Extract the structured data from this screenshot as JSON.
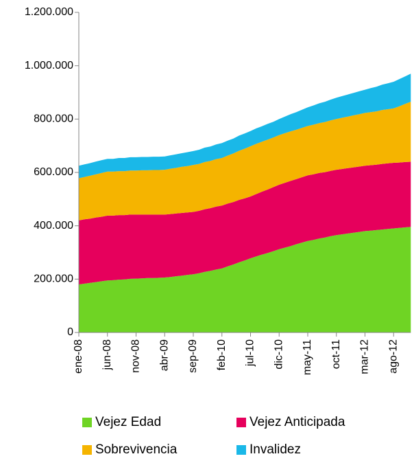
{
  "chart_data": {
    "type": "stacked_area",
    "categories": [
      "ene-08",
      null,
      null,
      null,
      null,
      "jun-08",
      null,
      null,
      null,
      null,
      "nov-08",
      null,
      null,
      null,
      null,
      "abr-09",
      null,
      null,
      null,
      null,
      "sep-09",
      null,
      null,
      null,
      null,
      "feb-10",
      null,
      null,
      null,
      null,
      "jul-10",
      null,
      null,
      null,
      null,
      "dic-10",
      null,
      null,
      null,
      null,
      "may-11",
      null,
      null,
      null,
      null,
      "oct-11",
      null,
      null,
      null,
      null,
      "mar-12",
      null,
      null,
      null,
      null,
      "ago-12",
      null,
      null,
      null
    ],
    "series": [
      {
        "name": "Vejez Edad",
        "color": "#6fd424",
        "values": [
          180000,
          183000,
          186000,
          189000,
          192000,
          195000,
          196000,
          198000,
          199000,
          201000,
          202000,
          203000,
          204000,
          204000,
          205000,
          206000,
          208000,
          211000,
          213000,
          216000,
          218000,
          222000,
          227000,
          231000,
          236000,
          240000,
          248000,
          255000,
          263000,
          270000,
          278000,
          285000,
          292000,
          298000,
          305000,
          312000,
          318000,
          324000,
          331000,
          337000,
          343000,
          347000,
          352000,
          356000,
          361000,
          365000,
          368000,
          371000,
          374000,
          377000,
          380000,
          382000,
          384000,
          386000,
          388000,
          390000,
          392000,
          394000,
          396000
        ]
      },
      {
        "name": "Vejez Anticipada",
        "color": "#e6005c",
        "values": [
          240000,
          241000,
          241000,
          242000,
          242000,
          243000,
          242000,
          242000,
          241000,
          241000,
          240000,
          239000,
          238000,
          238000,
          237000,
          236000,
          236000,
          235000,
          235000,
          234000,
          234000,
          234000,
          235000,
          235000,
          236000,
          236000,
          235000,
          234000,
          234000,
          233000,
          232000,
          234000,
          236000,
          238000,
          240000,
          242000,
          243000,
          244000,
          244000,
          245000,
          246000,
          246000,
          246000,
          245000,
          245000,
          245000,
          245000,
          245000,
          245000,
          245000,
          245000,
          245000,
          245000,
          246000,
          246000,
          246000,
          245000,
          245000,
          244000
        ]
      },
      {
        "name": "Sobrevivencia",
        "color": "#f5b400",
        "values": [
          158000,
          159000,
          161000,
          162000,
          164000,
          165000,
          165000,
          165000,
          165000,
          165000,
          165000,
          166000,
          166000,
          167000,
          167000,
          168000,
          170000,
          171000,
          173000,
          174000,
          176000,
          176000,
          177000,
          177000,
          178000,
          178000,
          180000,
          182000,
          184000,
          186000,
          188000,
          188000,
          187000,
          187000,
          186000,
          186000,
          186000,
          186000,
          185000,
          185000,
          185000,
          186000,
          187000,
          188000,
          189000,
          190000,
          192000,
          193000,
          195000,
          196000,
          198000,
          199000,
          200000,
          202000,
          203000,
          204000,
          211000,
          218000,
          225000
        ]
      },
      {
        "name": "Invalidez",
        "color": "#1ab8e8",
        "values": [
          47000,
          47000,
          47000,
          48000,
          48000,
          48000,
          48000,
          49000,
          49000,
          50000,
          50000,
          50000,
          50000,
          50000,
          50000,
          50000,
          50000,
          51000,
          51000,
          52000,
          52000,
          53000,
          54000,
          54000,
          55000,
          56000,
          56000,
          56000,
          57000,
          57000,
          57000,
          58000,
          58000,
          59000,
          59000,
          60000,
          62000,
          64000,
          66000,
          68000,
          70000,
          72000,
          74000,
          76000,
          78000,
          80000,
          81000,
          83000,
          84000,
          86000,
          87000,
          90000,
          92000,
          95000,
          97000,
          100000,
          102000,
          103000,
          105000
        ]
      }
    ],
    "ylim": [
      0,
      1200000
    ],
    "yticks": [
      0,
      {
        "value": 200000,
        "label": "200.000"
      },
      {
        "value": 400000,
        "label": "400.000"
      },
      {
        "value": 600000,
        "label": "600.000"
      },
      {
        "value": 800000,
        "label": "800.000"
      },
      {
        "value": 1000000,
        "label": "1.000.000"
      },
      {
        "value": 1200000,
        "label": "1.200.000"
      }
    ],
    "legend": "bottom"
  }
}
